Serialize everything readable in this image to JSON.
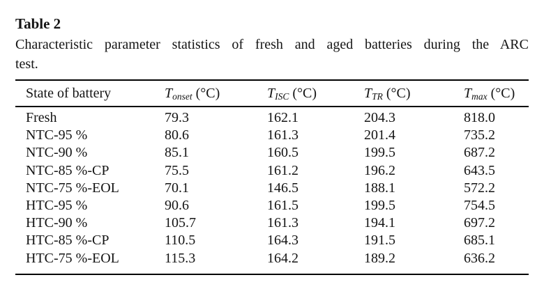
{
  "title": "Table 2",
  "caption": {
    "line1": "Characteristic parameter statistics of fresh and aged batteries during the ARC",
    "line2": "test."
  },
  "table": {
    "columns": [
      {
        "label": "State of battery"
      },
      {
        "symbol": "T",
        "subscript": "onset",
        "unit": "(°C)"
      },
      {
        "symbol": "T",
        "subscript": "ISC",
        "unit": "(°C)"
      },
      {
        "symbol": "T",
        "subscript": "TR",
        "unit": "(°C)"
      },
      {
        "symbol": "T",
        "subscript": "max",
        "unit": "(°C)"
      }
    ],
    "rows": [
      [
        "Fresh",
        "79.3",
        "162.1",
        "204.3",
        "818.0"
      ],
      [
        "NTC-95 %",
        "80.6",
        "161.3",
        "201.4",
        "735.2"
      ],
      [
        "NTC-90 %",
        "85.1",
        "160.5",
        "199.5",
        "687.2"
      ],
      [
        "NTC-85 %-CP",
        "75.5",
        "161.2",
        "196.2",
        "643.5"
      ],
      [
        "NTC-75 %-EOL",
        "70.1",
        "146.5",
        "188.1",
        "572.2"
      ],
      [
        "HTC-95 %",
        "90.6",
        "161.5",
        "199.5",
        "754.5"
      ],
      [
        "HTC-90 %",
        "105.7",
        "161.3",
        "194.1",
        "697.2"
      ],
      [
        "HTC-85 %-CP",
        "110.5",
        "164.3",
        "191.5",
        "685.1"
      ],
      [
        "HTC-75 %-EOL",
        "115.3",
        "164.2",
        "189.2",
        "636.2"
      ]
    ]
  },
  "colors": {
    "text": "#141414",
    "rule": "#000000"
  }
}
